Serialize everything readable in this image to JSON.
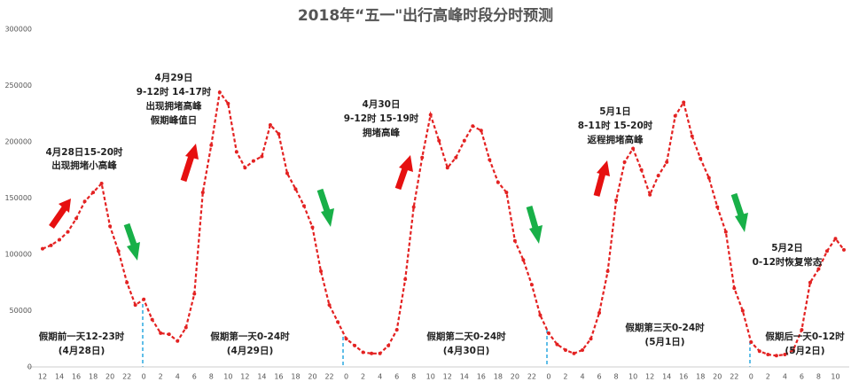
{
  "chart_data": {
    "type": "line",
    "title": "2018年“五一\"出行高峰时段分时预测",
    "categories": [
      "12",
      null,
      "14",
      null,
      "16",
      null,
      "18",
      null,
      "20",
      null,
      "22",
      null,
      "0",
      null,
      "2",
      null,
      "4",
      null,
      "6",
      null,
      "8",
      null,
      "10",
      null,
      "12",
      null,
      "14",
      null,
      "16",
      null,
      "18",
      null,
      "20",
      null,
      "22",
      null,
      "0",
      null,
      "2",
      null,
      "4",
      null,
      "6",
      null,
      "8",
      null,
      "10",
      null,
      "12",
      null,
      "14",
      null,
      "16",
      null,
      "18",
      null,
      "20",
      null,
      "22",
      null,
      "0",
      null,
      "2",
      null,
      "4",
      null,
      "6",
      null,
      "8",
      null,
      "10",
      null,
      "12",
      null,
      "14",
      null,
      "16",
      null,
      "18",
      null,
      "20",
      null,
      "22",
      null,
      "0",
      null,
      "2",
      null,
      "4",
      null,
      "6",
      null,
      "8",
      null,
      "10",
      null
    ],
    "values": [
      105000,
      108000,
      113000,
      120000,
      132000,
      147000,
      155000,
      163000,
      125000,
      103000,
      75000,
      55000,
      60000,
      42000,
      30000,
      29000,
      23000,
      35000,
      65000,
      155000,
      197000,
      244000,
      234000,
      191000,
      177000,
      183000,
      187000,
      215000,
      207000,
      172000,
      158000,
      143000,
      124000,
      85000,
      55000,
      40000,
      25000,
      19000,
      13000,
      12000,
      12000,
      19000,
      33000,
      78000,
      142000,
      186000,
      224000,
      201000,
      177000,
      186000,
      201000,
      214000,
      210000,
      184000,
      164000,
      155000,
      112000,
      95000,
      73000,
      46000,
      30000,
      20000,
      15000,
      12000,
      15000,
      25000,
      48000,
      85000,
      148000,
      182000,
      194000,
      175000,
      153000,
      170000,
      182000,
      223000,
      235000,
      205000,
      185000,
      168000,
      142000,
      120000,
      70000,
      50000,
      22000,
      14000,
      11000,
      10000,
      11000,
      15000,
      33000,
      75000,
      87000,
      103000,
      114000,
      104000
    ],
    "color": "#e32222",
    "ylim": [
      0,
      300000
    ],
    "yticks": [
      0,
      50000,
      100000,
      150000,
      200000,
      250000,
      300000
    ],
    "grid": false,
    "annotations": [
      [
        "4月28日15-20时",
        "出现拥堵小高峰"
      ],
      [
        "4月29日",
        "9-12时  14-17时",
        "出现拥堵高峰",
        "假期峰值日"
      ],
      [
        "4月30日",
        "9-12时  15-19时",
        "拥堵高峰"
      ],
      [
        "5月1日",
        "8-11时 15-20时",
        "返程拥堵高峰"
      ],
      [
        "5月2日",
        "0-12时恢复常态"
      ],
      [
        "假期前一天12-23时",
        "(4月28日)"
      ],
      [
        "假期第一天0-24时",
        "(4月29日)"
      ],
      [
        "假期第二天0-24时",
        "(4月30日)"
      ],
      [
        "假期第三天0-24时",
        "(5月1日)"
      ],
      [
        "假期后一天0-12时",
        "(5月2日)"
      ]
    ]
  }
}
